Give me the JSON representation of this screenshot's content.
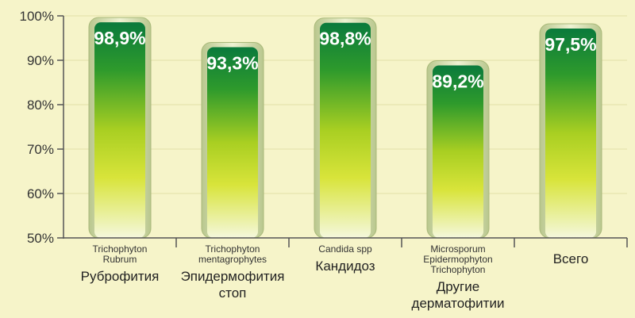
{
  "chart_data": {
    "type": "bar",
    "title": "",
    "xlabel": "",
    "ylabel": "",
    "ylim": [
      50,
      100
    ],
    "yticks": [
      50,
      60,
      70,
      80,
      90,
      100
    ],
    "ytick_labels": [
      "50%",
      "60%",
      "70%",
      "80%",
      "90%",
      "100%"
    ],
    "grid": true,
    "categories": [
      {
        "latin": [
          "Trichophyton",
          "Rubrum"
        ],
        "name": [
          "Руброфития"
        ]
      },
      {
        "latin": [
          "Trichophyton",
          "mentagrophytes"
        ],
        "name": [
          "Эпидермофития",
          "стоп"
        ]
      },
      {
        "latin": [
          "Candida spp"
        ],
        "name": [
          "Кандидоз"
        ]
      },
      {
        "latin": [
          "Microsporum",
          "Epidermophyton",
          "Trichophyton"
        ],
        "name": [
          "Другие",
          "дерматофитии"
        ]
      },
      {
        "latin": [],
        "name": [
          "Всего"
        ]
      }
    ],
    "values": [
      98.9,
      93.3,
      98.8,
      89.2,
      97.5
    ],
    "value_labels": [
      "98,9%",
      "93,3%",
      "98,8%",
      "89,2%",
      "97,5%"
    ],
    "colors": {
      "bar_top": "#0a7a3c",
      "bar_mid": "#c9de2a",
      "bar_bottom": "#f4f7dc",
      "frame": "#c7d3a0",
      "background": "#f6f4c9",
      "axis": "#555555"
    }
  }
}
